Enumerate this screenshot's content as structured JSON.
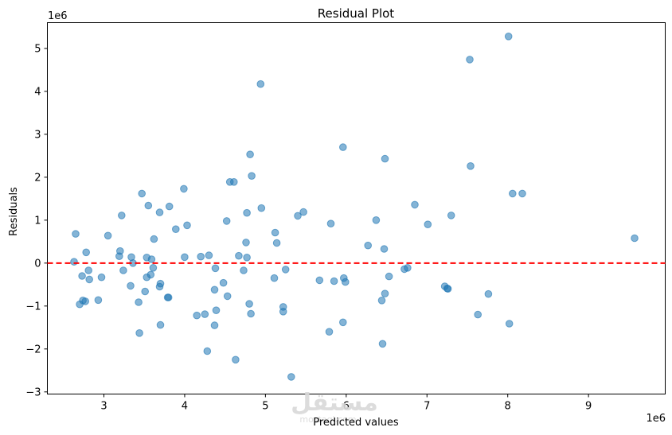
{
  "chart_data": {
    "type": "scatter",
    "title": "Residual Plot",
    "xlabel": "Predicted values",
    "ylabel": "Residuals",
    "x_multiplier_label": "1e6",
    "y_multiplier_label": "1e6",
    "xlim": [
      2.3,
      9.95
    ],
    "ylim": [
      -3.05,
      5.6
    ],
    "xticks": [
      3,
      4,
      5,
      6,
      7,
      8,
      9
    ],
    "yticks": [
      -3,
      -2,
      -1,
      0,
      1,
      2,
      3,
      4,
      5
    ],
    "grid": false,
    "point_color": "#1f77b4",
    "reference_line": {
      "y": 0,
      "color": "#ff0000",
      "style": "dashed"
    },
    "points": [
      {
        "x": 2.63,
        "y": 0.03
      },
      {
        "x": 2.65,
        "y": 0.68
      },
      {
        "x": 2.7,
        "y": -0.96
      },
      {
        "x": 2.73,
        "y": -0.3
      },
      {
        "x": 2.74,
        "y": -0.87
      },
      {
        "x": 2.77,
        "y": -0.89
      },
      {
        "x": 2.78,
        "y": 0.25
      },
      {
        "x": 2.81,
        "y": -0.17
      },
      {
        "x": 2.82,
        "y": -0.38
      },
      {
        "x": 2.93,
        "y": -0.86
      },
      {
        "x": 2.97,
        "y": -0.33
      },
      {
        "x": 3.05,
        "y": 0.64
      },
      {
        "x": 3.19,
        "y": 0.16
      },
      {
        "x": 3.2,
        "y": 0.28
      },
      {
        "x": 3.22,
        "y": 1.11
      },
      {
        "x": 3.24,
        "y": -0.17
      },
      {
        "x": 3.33,
        "y": -0.53
      },
      {
        "x": 3.34,
        "y": 0.14
      },
      {
        "x": 3.36,
        "y": 0.0
      },
      {
        "x": 3.43,
        "y": -0.91
      },
      {
        "x": 3.44,
        "y": -1.63
      },
      {
        "x": 3.47,
        "y": 1.62
      },
      {
        "x": 3.51,
        "y": -0.66
      },
      {
        "x": 3.53,
        "y": 0.13
      },
      {
        "x": 3.53,
        "y": -0.33
      },
      {
        "x": 3.55,
        "y": 1.34
      },
      {
        "x": 3.58,
        "y": -0.27
      },
      {
        "x": 3.59,
        "y": 0.09
      },
      {
        "x": 3.62,
        "y": 0.56
      },
      {
        "x": 3.61,
        "y": -0.11
      },
      {
        "x": 3.69,
        "y": 1.18
      },
      {
        "x": 3.69,
        "y": -0.55
      },
      {
        "x": 3.7,
        "y": -0.48
      },
      {
        "x": 3.7,
        "y": -1.44
      },
      {
        "x": 3.79,
        "y": -0.8
      },
      {
        "x": 3.8,
        "y": -0.8
      },
      {
        "x": 3.81,
        "y": 1.32
      },
      {
        "x": 3.89,
        "y": 0.79
      },
      {
        "x": 3.99,
        "y": 1.73
      },
      {
        "x": 4.0,
        "y": 0.14
      },
      {
        "x": 4.03,
        "y": 0.88
      },
      {
        "x": 4.15,
        "y": -1.22
      },
      {
        "x": 4.2,
        "y": 0.15
      },
      {
        "x": 4.25,
        "y": -1.19
      },
      {
        "x": 4.28,
        "y": -2.05
      },
      {
        "x": 4.3,
        "y": 0.18
      },
      {
        "x": 4.37,
        "y": -0.62
      },
      {
        "x": 4.37,
        "y": -1.45
      },
      {
        "x": 4.38,
        "y": -0.12
      },
      {
        "x": 4.39,
        "y": -1.1
      },
      {
        "x": 4.48,
        "y": -0.46
      },
      {
        "x": 4.52,
        "y": 0.98
      },
      {
        "x": 4.53,
        "y": -0.77
      },
      {
        "x": 4.56,
        "y": 1.89
      },
      {
        "x": 4.61,
        "y": 1.89
      },
      {
        "x": 4.63,
        "y": -2.25
      },
      {
        "x": 4.67,
        "y": 0.17
      },
      {
        "x": 4.73,
        "y": -0.17
      },
      {
        "x": 4.76,
        "y": 0.48
      },
      {
        "x": 4.77,
        "y": 1.17
      },
      {
        "x": 4.77,
        "y": 0.13
      },
      {
        "x": 4.8,
        "y": -0.95
      },
      {
        "x": 4.81,
        "y": 2.53
      },
      {
        "x": 4.82,
        "y": -1.18
      },
      {
        "x": 4.83,
        "y": 2.03
      },
      {
        "x": 4.94,
        "y": 4.17
      },
      {
        "x": 4.95,
        "y": 1.28
      },
      {
        "x": 5.11,
        "y": -0.35
      },
      {
        "x": 5.12,
        "y": 0.71
      },
      {
        "x": 5.14,
        "y": 0.47
      },
      {
        "x": 5.22,
        "y": -1.02
      },
      {
        "x": 5.22,
        "y": -1.13
      },
      {
        "x": 5.25,
        "y": -0.15
      },
      {
        "x": 5.32,
        "y": -2.65
      },
      {
        "x": 5.4,
        "y": 1.1
      },
      {
        "x": 5.47,
        "y": 1.19
      },
      {
        "x": 5.67,
        "y": -0.4
      },
      {
        "x": 5.79,
        "y": -1.6
      },
      {
        "x": 5.81,
        "y": 0.92
      },
      {
        "x": 5.85,
        "y": -0.42
      },
      {
        "x": 5.96,
        "y": 2.7
      },
      {
        "x": 5.96,
        "y": -1.38
      },
      {
        "x": 5.97,
        "y": -0.35
      },
      {
        "x": 5.99,
        "y": -0.44
      },
      {
        "x": 6.27,
        "y": 0.41
      },
      {
        "x": 6.37,
        "y": 1.0
      },
      {
        "x": 6.44,
        "y": -0.87
      },
      {
        "x": 6.45,
        "y": -1.88
      },
      {
        "x": 6.47,
        "y": 0.33
      },
      {
        "x": 6.48,
        "y": 2.43
      },
      {
        "x": 6.48,
        "y": -0.71
      },
      {
        "x": 6.53,
        "y": -0.31
      },
      {
        "x": 6.72,
        "y": -0.14
      },
      {
        "x": 6.76,
        "y": -0.11
      },
      {
        "x": 6.85,
        "y": 1.36
      },
      {
        "x": 7.01,
        "y": 0.9
      },
      {
        "x": 7.22,
        "y": -0.54
      },
      {
        "x": 7.25,
        "y": -0.59
      },
      {
        "x": 7.26,
        "y": -0.6
      },
      {
        "x": 7.3,
        "y": 1.11
      },
      {
        "x": 7.53,
        "y": 4.74
      },
      {
        "x": 7.54,
        "y": 2.26
      },
      {
        "x": 7.63,
        "y": -1.2
      },
      {
        "x": 7.76,
        "y": -0.72
      },
      {
        "x": 8.01,
        "y": 5.28
      },
      {
        "x": 8.02,
        "y": -1.41
      },
      {
        "x": 8.06,
        "y": 1.62
      },
      {
        "x": 8.18,
        "y": 1.62
      },
      {
        "x": 9.57,
        "y": 0.58
      }
    ]
  },
  "watermark": {
    "text": "مستقل",
    "subtext": "mostaql.com"
  }
}
